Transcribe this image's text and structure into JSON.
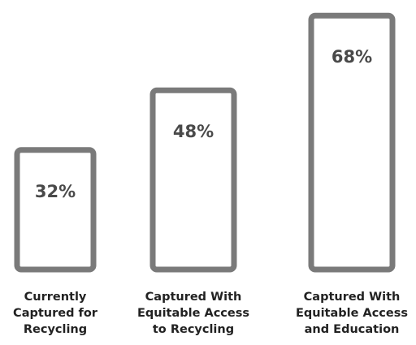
{
  "chart_data": {
    "type": "bar",
    "categories": [
      "Currently\nCaptured for\nRecycling",
      "Captured With\nEquitable Access\nto Recycling",
      "Captured With\nEquitable Access\nand Education"
    ],
    "values": [
      32,
      48,
      68
    ],
    "value_labels": [
      "32%",
      "48%",
      "68%"
    ],
    "title": "",
    "xlabel": "",
    "ylabel": "",
    "ylim": [
      0,
      100
    ],
    "grid": false,
    "legend": "none",
    "colors": {
      "bar_outline": "#7a7a7a",
      "bar_fill": "#ffffff",
      "value_text": "#4a4a4a",
      "label_text": "#222222"
    }
  }
}
